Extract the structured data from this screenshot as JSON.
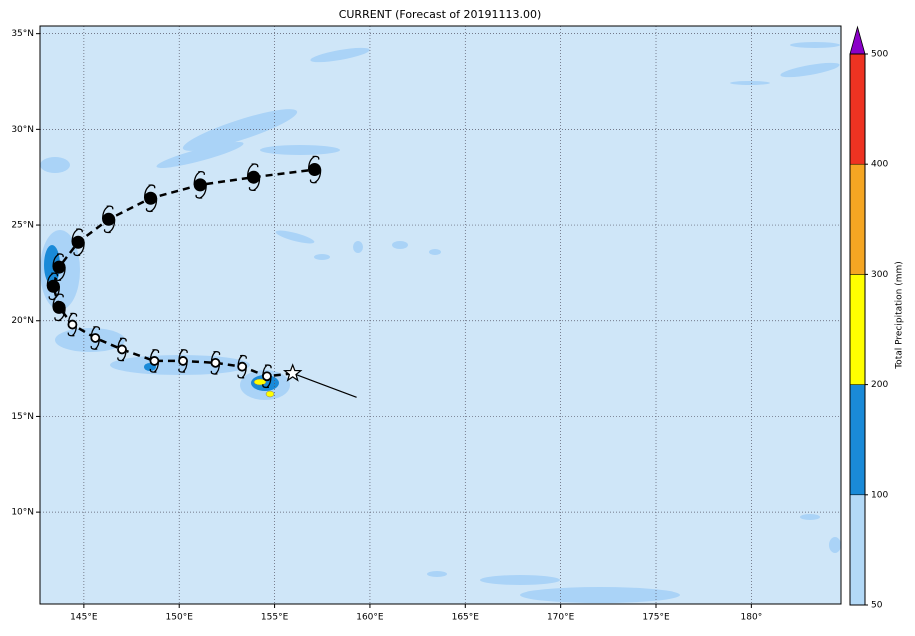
{
  "map": {
    "title": "CURRENT (Forecast of 20191113.00)",
    "xlim": [
      142.7,
      184.7
    ],
    "ylim": [
      5.2,
      35.4
    ],
    "xticks": [
      {
        "value": 145,
        "label": "145°E"
      },
      {
        "value": 150,
        "label": "150°E"
      },
      {
        "value": 155,
        "label": "155°E"
      },
      {
        "value": 160,
        "label": "160°E"
      },
      {
        "value": 165,
        "label": "165°E"
      },
      {
        "value": 170,
        "label": "170°E"
      },
      {
        "value": 175,
        "label": "175°E"
      },
      {
        "value": 180,
        "label": "180°"
      }
    ],
    "yticks": [
      {
        "value": 10,
        "label": "10°N"
      },
      {
        "value": 15,
        "label": "15°N"
      },
      {
        "value": 20,
        "label": "20°N"
      },
      {
        "value": 25,
        "label": "25°N"
      },
      {
        "value": 30,
        "label": "30°N"
      },
      {
        "value": 35,
        "label": "35°N"
      }
    ],
    "grid": true,
    "current": {
      "lon": 155.95,
      "lat": 17.25
    },
    "past": {
      "lon": 159.3,
      "lat": 16.0
    },
    "track": {
      "lon": [
        154.6,
        153.3,
        151.9,
        150.2,
        148.7,
        147.0,
        145.6,
        144.4,
        143.7,
        143.4,
        143.7,
        144.7,
        146.3,
        148.5,
        151.1,
        153.9,
        157.1
      ],
      "lat": [
        17.1,
        17.6,
        17.8,
        17.9,
        17.9,
        18.5,
        19.1,
        19.8,
        20.7,
        21.8,
        22.8,
        24.1,
        25.3,
        26.4,
        27.1,
        27.5,
        27.9
      ],
      "symbols": [
        "open",
        "open",
        "open",
        "open",
        "open",
        "open",
        "open",
        "open",
        "filled",
        "filled",
        "filled",
        "filled",
        "filled",
        "filled",
        "filled",
        "filled",
        "filled"
      ]
    }
  },
  "colorbar": {
    "label": "Total Precipitation (mm)",
    "ticks": [
      50,
      100,
      200,
      300,
      400,
      500
    ],
    "colors": [
      "#b3d9f7",
      "#1a8ad8",
      "#ffff00",
      "#f5a623",
      "#ee3322",
      "#8a00c8"
    ]
  }
}
